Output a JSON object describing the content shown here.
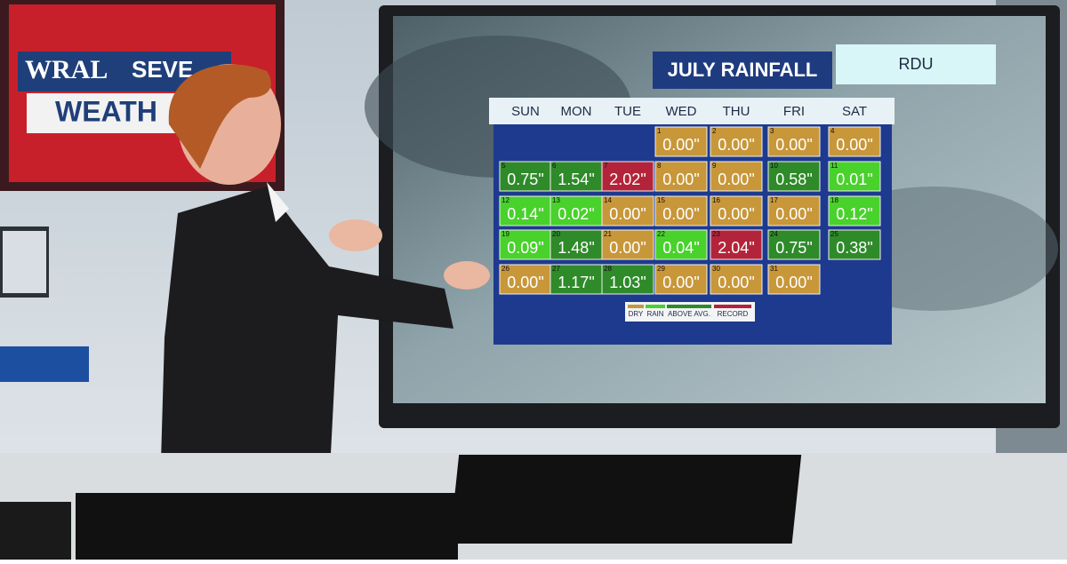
{
  "logo": {
    "lines": [
      "WRAL",
      "SEVE",
      "WEATH"
    ]
  },
  "board": {
    "title": "JULY RAINFALL",
    "station": "RDU",
    "weekdays": [
      "SUN",
      "MON",
      "TUE",
      "WED",
      "THU",
      "FRI",
      "SAT"
    ],
    "days": [
      {
        "day": 1,
        "rain": "0.00\"",
        "color": "#c8973a"
      },
      {
        "day": 2,
        "rain": "0.00\"",
        "color": "#c8973a"
      },
      {
        "day": 3,
        "rain": "0.00\"",
        "color": "#c8973a"
      },
      {
        "day": 4,
        "rain": "0.00\"",
        "color": "#c8973a"
      },
      {
        "day": 5,
        "rain": "0.75\"",
        "color": "#2f8a2a"
      },
      {
        "day": 6,
        "rain": "1.54\"",
        "color": "#2f8a2a"
      },
      {
        "day": 7,
        "rain": "2.02\"",
        "color": "#b3243a"
      },
      {
        "day": 8,
        "rain": "0.00\"",
        "color": "#c8973a"
      },
      {
        "day": 9,
        "rain": "0.00\"",
        "color": "#c8973a"
      },
      {
        "day": 10,
        "rain": "0.58\"",
        "color": "#2f8a2a"
      },
      {
        "day": 11,
        "rain": "0.01\"",
        "color": "#49d12c"
      },
      {
        "day": 12,
        "rain": "0.14\"",
        "color": "#49d12c"
      },
      {
        "day": 13,
        "rain": "0.02\"",
        "color": "#49d12c"
      },
      {
        "day": 14,
        "rain": "0.00\"",
        "color": "#c8973a"
      },
      {
        "day": 15,
        "rain": "0.00\"",
        "color": "#c8973a"
      },
      {
        "day": 16,
        "rain": "0.00\"",
        "color": "#c8973a"
      },
      {
        "day": 17,
        "rain": "0.00\"",
        "color": "#c8973a"
      },
      {
        "day": 18,
        "rain": "0.12\"",
        "color": "#49d12c"
      },
      {
        "day": 19,
        "rain": "0.09\"",
        "color": "#49d12c"
      },
      {
        "day": 20,
        "rain": "1.48\"",
        "color": "#2f8a2a"
      },
      {
        "day": 21,
        "rain": "0.00\"",
        "color": "#c8973a"
      },
      {
        "day": 22,
        "rain": "0.04\"",
        "color": "#49d12c"
      },
      {
        "day": 23,
        "rain": "2.04\"",
        "color": "#b3243a"
      },
      {
        "day": 24,
        "rain": "0.75\"",
        "color": "#2f8a2a"
      },
      {
        "day": 25,
        "rain": "0.38\"",
        "color": "#2f8a2a"
      },
      {
        "day": 26,
        "rain": "0.00\"",
        "color": "#c8973a"
      },
      {
        "day": 27,
        "rain": "1.17\"",
        "color": "#2f8a2a"
      },
      {
        "day": 28,
        "rain": "1.03\"",
        "color": "#2f8a2a"
      },
      {
        "day": 29,
        "rain": "0.00\"",
        "color": "#c8973a"
      },
      {
        "day": 30,
        "rain": "0.00\"",
        "color": "#c8973a"
      },
      {
        "day": 31,
        "rain": "0.00\"",
        "color": "#c8973a"
      }
    ],
    "legend": [
      {
        "name": "DRY",
        "color": "#c8973a"
      },
      {
        "name": "RAIN",
        "color": "#49d12c"
      },
      {
        "name": "ABOVE AVG.",
        "color": "#2f8a2a"
      },
      {
        "name": "RECORD",
        "color": "#b3243a"
      }
    ]
  }
}
